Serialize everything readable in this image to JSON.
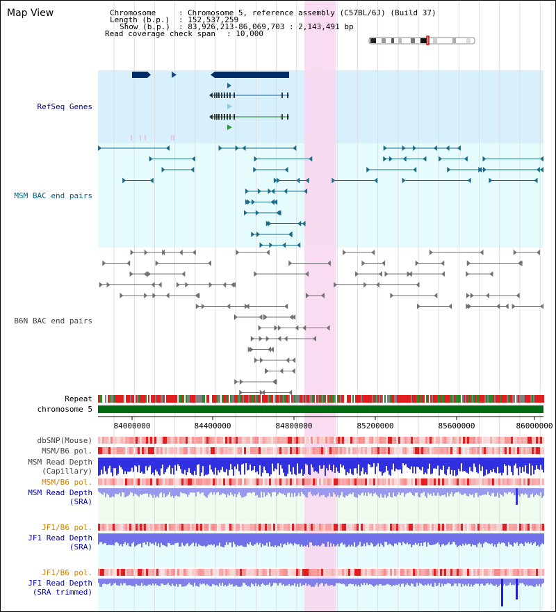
{
  "title": "Map View",
  "info": {
    "chromosome_label": "Chromosome",
    "chromosome_sep": ":",
    "chromosome_value": "Chromosome 5, reference assembly (C57BL/6J) (Build 37)",
    "length_label": "Length (b.p.)",
    "length_value": ": 152,537,259",
    "show_label": "Show (b.p.)",
    "show_value": ": 83,926,213-86,069,703 : 2,143,491 bp",
    "coverage_label": "Read coverage check span",
    "coverage_value": ": 10,000"
  },
  "tracks": {
    "refseq": "RefSeq Genes",
    "msm_bac": "MSM BAC end pairs",
    "b6n_bac": "B6N BAC end pairs",
    "repeat": "Repeat",
    "chromosome": "chromosome 5",
    "dbsnp": "dbSNP(Mouse)",
    "msm_b6_pol_1": "MSM/B6 pol.",
    "msm_depth_cap_1": "MSM Read Depth",
    "msm_depth_cap_2": "(Capillary)",
    "msm_b6_pol_2": "MSM/B6 pol.",
    "msm_depth_sra_1": "MSM Read Depth",
    "msm_depth_sra_2": "(SRA)",
    "jf1_pol_1": "JF1/B6 pol.",
    "jf1_depth_sra_1": "JF1 Read Depth",
    "jf1_depth_sra_2": "(SRA)",
    "jf1_pol_2": "JF1/B6 pol.",
    "jf1_depth_trim_1": "JF1 Read Depth",
    "jf1_depth_trim_2": "(SRA trimmed)"
  },
  "axis": {
    "ticks": [
      "84000000",
      "84400000",
      "84800000",
      "85200000",
      "85600000",
      "86000000"
    ]
  },
  "colors": {
    "refseq_label": "#00008b",
    "msm_bac_label": "#006080",
    "b6n_bac_label": "#404040",
    "orange_label": "#d08000",
    "blue_label": "#0000b0",
    "highlight": "#f8d8f0"
  }
}
